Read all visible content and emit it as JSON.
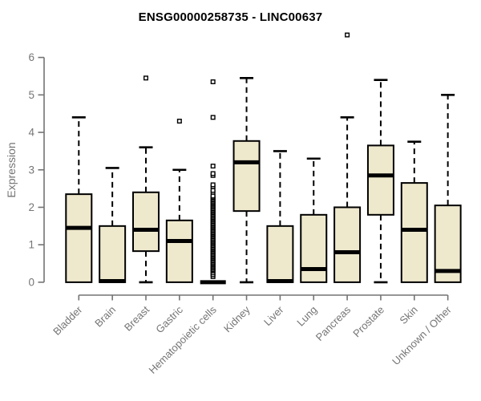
{
  "page": {
    "background": "#ffffff"
  },
  "chart_data": {
    "type": "boxplot",
    "title": "ENSG00000258735 - LINC00637",
    "ylabel": "Expression",
    "xlabel": "",
    "ylim": [
      0,
      6
    ],
    "yticks": [
      0,
      1,
      2,
      3,
      4,
      5,
      6
    ],
    "grid": false,
    "legend": "none",
    "colors": {
      "box_fill": "#EEE8CD",
      "box_stroke": "#000000",
      "median": "#000000",
      "whisker": "#000000",
      "axis_line": "#737373",
      "axis_text": "#757575",
      "title_text": "#000000",
      "background": "#ffffff"
    },
    "categories": [
      "Bladder",
      "Brain",
      "Breast",
      "Gastric",
      "Hematopoietic cells",
      "Kidney",
      "Liver",
      "Lung",
      "Pancreas",
      "Prostate",
      "Skin",
      "Unknown / Other"
    ],
    "boxes": [
      {
        "category": "Bladder",
        "low": 0,
        "q1": 0,
        "median": 1.45,
        "q3": 2.35,
        "high": 4.4,
        "outliers": []
      },
      {
        "category": "Brain",
        "low": 0,
        "q1": 0,
        "median": 0.03,
        "q3": 1.5,
        "high": 3.05,
        "outliers": []
      },
      {
        "category": "Breast",
        "low": 0,
        "q1": 0.83,
        "median": 1.4,
        "q3": 2.4,
        "high": 3.6,
        "outliers": [
          5.45
        ]
      },
      {
        "category": "Gastric",
        "low": 0,
        "q1": 0,
        "median": 1.1,
        "q3": 1.65,
        "high": 3.0,
        "outliers": [
          4.3
        ]
      },
      {
        "category": "Hematopoietic cells",
        "low": 0,
        "q1": 0,
        "median": 0,
        "q3": 0,
        "high": 0,
        "outliers": [
          0.15,
          0.2,
          0.25,
          2.4,
          2.45,
          2.55,
          2.6,
          2.85,
          2.9,
          3.1,
          4.4,
          5.35
        ],
        "dense_outliers": {
          "min": 0.3,
          "max": 2.3,
          "count": 60
        }
      },
      {
        "category": "Kidney",
        "low": 0,
        "q1": 1.9,
        "median": 3.2,
        "q3": 3.77,
        "high": 5.45,
        "outliers": []
      },
      {
        "category": "Liver",
        "low": 0,
        "q1": 0,
        "median": 0.03,
        "q3": 1.5,
        "high": 3.5,
        "outliers": []
      },
      {
        "category": "Lung",
        "low": 0,
        "q1": 0,
        "median": 0.35,
        "q3": 1.8,
        "high": 3.3,
        "outliers": []
      },
      {
        "category": "Pancreas",
        "low": 0,
        "q1": 0,
        "median": 0.8,
        "q3": 2.0,
        "high": 4.4,
        "outliers": [
          6.6
        ]
      },
      {
        "category": "Prostate",
        "low": 0,
        "q1": 1.8,
        "median": 2.85,
        "q3": 3.65,
        "high": 5.4,
        "outliers": []
      },
      {
        "category": "Skin",
        "low": 0,
        "q1": 0,
        "median": 1.4,
        "q3": 2.65,
        "high": 3.75,
        "outliers": []
      },
      {
        "category": "Unknown / Other",
        "low": 0,
        "q1": 0,
        "median": 0.3,
        "q3": 2.05,
        "high": 5.0,
        "outliers": []
      }
    ]
  }
}
